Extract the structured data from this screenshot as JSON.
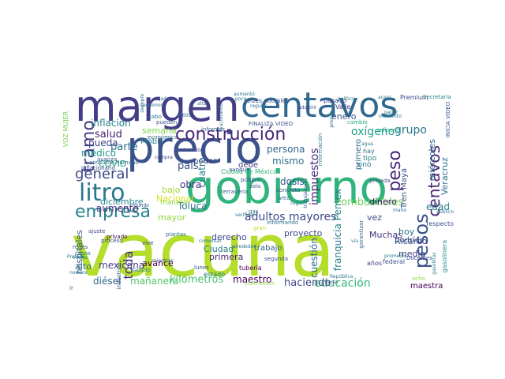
{
  "cloud": {
    "words": [
      {
        "text": "vacuna",
        "color": "#b5de2b"
      },
      {
        "text": "precio",
        "color": "#3b528b"
      },
      {
        "text": "gobierno",
        "color": "#2fb47c"
      },
      {
        "text": "margen",
        "color": "#433e85"
      },
      {
        "text": "centavos",
        "color": "#31688e"
      },
      {
        "text": "construcción",
        "color": "#482878"
      },
      {
        "text": "litro",
        "color": "#2a788e"
      },
      {
        "text": "empresa",
        "color": "#26828e"
      },
      {
        "text": "general",
        "color": "#3e4989"
      },
      {
        "text": "tramo",
        "color": "#453882"
      },
      {
        "text": "centavos",
        "color": "#482576"
      },
      {
        "text": "pesos",
        "color": "#3b528b"
      },
      {
        "text": "peso",
        "color": "#482878"
      },
      {
        "text": "adultos mayores",
        "color": "#3e4989"
      },
      {
        "text": "oxígeno",
        "color": "#1fa187"
      },
      {
        "text": "grupo",
        "color": "#2a788e"
      },
      {
        "text": "combustibles",
        "color": "#6ece58"
      },
      {
        "text": "educación",
        "color": "#35b779"
      },
      {
        "text": "kilómetros",
        "color": "#4ac16d"
      },
      {
        "text": "haciendo",
        "color": "#3e4989"
      },
      {
        "text": "maestro",
        "color": "#440154"
      },
      {
        "text": "mañanera",
        "color": "#52c569"
      },
      {
        "text": "diésel",
        "color": "#31688e"
      },
      {
        "text": "toda",
        "color": "#46327e"
      },
      {
        "text": "inflación",
        "color": "#26828e"
      },
      {
        "text": "semana",
        "color": "#7ad151"
      },
      {
        "text": "salud",
        "color": "#481f70"
      },
      {
        "text": "parte",
        "color": "#2c728e"
      },
      {
        "text": "pueda",
        "color": "#404688"
      },
      {
        "text": "Mobil",
        "color": "#287d8e"
      },
      {
        "text": "médico",
        "color": "#1e9b8a"
      },
      {
        "text": "aumento",
        "color": "#46327e"
      },
      {
        "text": "COVID",
        "color": "#20a486"
      },
      {
        "text": "diciembre",
        "color": "#25848e"
      },
      {
        "text": "mexicana",
        "color": "#424086"
      },
      {
        "text": "hospitales",
        "color": "#38588c"
      },
      {
        "text": "avance",
        "color": "#440154"
      },
      {
        "text": "alto",
        "color": "#2f6c8e"
      },
      {
        "text": "persona",
        "color": "#33638d"
      },
      {
        "text": "mismo",
        "color": "#2e6f8e"
      },
      {
        "text": "impuestos",
        "color": "#472c7a"
      },
      {
        "text": "país",
        "color": "#3b528b"
      },
      {
        "text": "dosis",
        "color": "#38588c"
      },
      {
        "text": "edad",
        "color": "#277f8e"
      },
      {
        "text": "Toluca",
        "color": "#2c728e"
      },
      {
        "text": "mayor",
        "color": "#90d743"
      },
      {
        "text": "bajo",
        "color": "#a0da39"
      },
      {
        "text": "Nacional",
        "color": "#d8e219"
      },
      {
        "text": "cuatro",
        "color": "#2a788e"
      },
      {
        "text": "obra",
        "color": "#46327e"
      },
      {
        "text": "poder",
        "color": "#3f4788"
      },
      {
        "text": "debe",
        "color": "#443a83"
      },
      {
        "text": "Ciudad",
        "color": "#2a788e"
      },
      {
        "text": "derecho",
        "color": "#404688"
      },
      {
        "text": "primera",
        "color": "#482576"
      },
      {
        "text": "trabajo",
        "color": "#355f8d"
      },
      {
        "text": "proyecto",
        "color": "#3e4989"
      },
      {
        "text": "cuestión",
        "color": "#31688e"
      },
      {
        "text": "franquicia Pemex",
        "color": "#26828e"
      },
      {
        "text": "primero",
        "color": "#31688e"
      },
      {
        "text": "enero",
        "color": "#3b528b"
      },
      {
        "text": "Muchas",
        "color": "#46327e"
      },
      {
        "text": "vez",
        "color": "#3b528b"
      },
      {
        "text": "dinero",
        "color": "#481f70"
      },
      {
        "text": "Ricardo",
        "color": "#3e4989"
      },
      {
        "text": "hoy",
        "color": "#2c728e"
      },
      {
        "text": "medio",
        "color": "#424086"
      },
      {
        "text": "podría",
        "color": "#3b528b"
      },
      {
        "text": "maestra",
        "color": "#440154"
      },
      {
        "text": "miércoles",
        "color": "#31688e"
      },
      {
        "text": "Veracruz",
        "color": "#2c728e"
      },
      {
        "text": "Tren Maya",
        "color": "#3b528b"
      },
      {
        "text": "gasolinera",
        "color": "#21918c"
      },
      {
        "text": "estado",
        "color": "#277f8e"
      },
      {
        "text": "Ciudad de México",
        "color": "#2fb47c"
      },
      {
        "text": "redes sociales",
        "color": "#3b528b"
      },
      {
        "text": "pasado",
        "color": "#3e4989"
      },
      {
        "text": "Valle",
        "color": "#443a83"
      },
      {
        "text": "Premium",
        "color": "#3f4788"
      },
      {
        "text": "Secretaría",
        "color": "#26828e"
      },
      {
        "text": "INICIA VIDEO",
        "color": "#38588c"
      },
      {
        "text": "FINALIZA VIDEO",
        "color": "#39568c"
      },
      {
        "text": "refinería",
        "color": "#20a486"
      },
      {
        "text": "información",
        "color": "#2a788e"
      },
      {
        "text": "cambio",
        "color": "#22a884"
      },
      {
        "text": "VOZ MUJER",
        "color": "#7ad151"
      },
      {
        "text": "económica",
        "color": "#31688e"
      },
      {
        "text": "informar",
        "color": "#33638d"
      },
      {
        "text": "pueden",
        "color": "#38588c"
      },
      {
        "text": "cabo",
        "color": "#2c728e"
      },
      {
        "text": "6600",
        "color": "#2c728e"
      },
      {
        "text": "avanza",
        "color": "#3b528b"
      },
      {
        "text": "inflacionario",
        "color": "#3e4989"
      },
      {
        "text": "consumo humano",
        "color": "#2c728e"
      },
      {
        "text": "compra",
        "color": "#3e4989"
      },
      {
        "text": "colocación",
        "color": "#3e4989"
      },
      {
        "text": "aunque",
        "color": "#3b528b"
      },
      {
        "text": "público",
        "color": "#3b528b"
      },
      {
        "text": "sola",
        "color": "#3b528b"
      },
      {
        "text": "concreto",
        "color": "#3b528b"
      },
      {
        "text": "terracería",
        "color": "#38588c"
      },
      {
        "text": "plantas",
        "color": "#2c728e"
      },
      {
        "text": "trabajadores",
        "color": "#38588c"
      },
      {
        "text": "manera",
        "color": "#90d743"
      },
      {
        "text": "gran",
        "color": "#b5de2b"
      },
      {
        "text": "informando",
        "color": "#2c728e"
      },
      {
        "text": "lugar",
        "color": "#26828e"
      },
      {
        "text": "área",
        "color": "#31688e"
      },
      {
        "text": "gas",
        "color": "#2c728e"
      },
      {
        "text": "verificar",
        "color": "#2c728e"
      },
      {
        "text": "tubería",
        "color": "#440154"
      },
      {
        "text": "lunes",
        "color": "#3b528b"
      },
      {
        "text": "mientras",
        "color": "#3e4989"
      },
      {
        "text": "vive",
        "color": "#3e4989"
      },
      {
        "text": "ajuste",
        "color": "#3e4989"
      },
      {
        "text": "proceso",
        "color": "#3e4989"
      },
      {
        "text": "casos",
        "color": "#2a788e"
      },
      {
        "text": "redes",
        "color": "#3b528b"
      },
      {
        "text": "privado",
        "color": "#440154"
      },
      {
        "text": "industrial",
        "color": "#3b528b"
      },
      {
        "text": "segunda",
        "color": "#3b528b"
      },
      {
        "text": "federal",
        "color": "#3b528b"
      },
      {
        "text": "años",
        "color": "#443a83"
      },
      {
        "text": "respecto",
        "color": "#3b528b"
      },
      {
        "text": "garantizar",
        "color": "#31688e"
      },
      {
        "text": "privada",
        "color": "#3e4989"
      },
      {
        "text": "sino",
        "color": "#2c728e"
      },
      {
        "text": "tipo",
        "color": "#26828e"
      },
      {
        "text": "hay",
        "color": "#2c728e"
      },
      {
        "text": "Docentes",
        "color": "#3e4989"
      },
      {
        "text": "hacia",
        "color": "#3e4989"
      },
      {
        "text": "ocho",
        "color": "#90d743"
      },
      {
        "text": "VIDEO MARLES",
        "color": "#90d743"
      },
      {
        "text": "ir",
        "color": "#2c728e"
      },
      {
        "text": "regular",
        "color": "#2c728e"
      },
      {
        "text": "seguimos",
        "color": "#2c728e"
      },
      {
        "text": "cada",
        "color": "#2c728e"
      },
      {
        "text": "siempre",
        "color": "#2c728e"
      },
      {
        "text": "alta",
        "color": "#2c728e"
      },
      {
        "text": "adquirir",
        "color": "#3e4989"
      },
      {
        "text": "premio",
        "color": "#2c728e"
      },
      {
        "text": "pagar",
        "color": "#2c728e"
      },
      {
        "text": "alrededor",
        "color": "#2c728e"
      },
      {
        "text": "mundo",
        "color": "#3e4989"
      },
      {
        "text": "República",
        "color": "#2a788e"
      },
      {
        "text": "Profeco",
        "color": "#2a788e"
      },
      {
        "text": "vacunando",
        "color": "#2a788e"
      },
      {
        "text": "comentar",
        "color": "#2a788e"
      },
      {
        "text": "poco",
        "color": "#2a788e"
      },
      {
        "text": "aumentó",
        "color": "#2a788e"
      },
      {
        "text": "promedio",
        "color": "#2a788e"
      },
      {
        "text": "momento",
        "color": "#2a788e"
      },
      {
        "text": "vía",
        "color": "#2a788e"
      },
      {
        "text": "mano",
        "color": "#2a788e"
      },
      {
        "text": "agua",
        "color": "#2a788e"
      },
      {
        "text": "político",
        "color": "#2a788e"
      },
      {
        "text": "acero",
        "color": "#2a788e"
      },
      {
        "text": "viaducto",
        "color": "#2a788e"
      },
      {
        "text": "nombre",
        "color": "#2a788e"
      },
      {
        "text": "vuelta",
        "color": "#2a788e"
      },
      {
        "text": "gasolinas",
        "color": "#2a788e"
      },
      {
        "text": "público",
        "color": "#2a788e"
      }
    ]
  }
}
